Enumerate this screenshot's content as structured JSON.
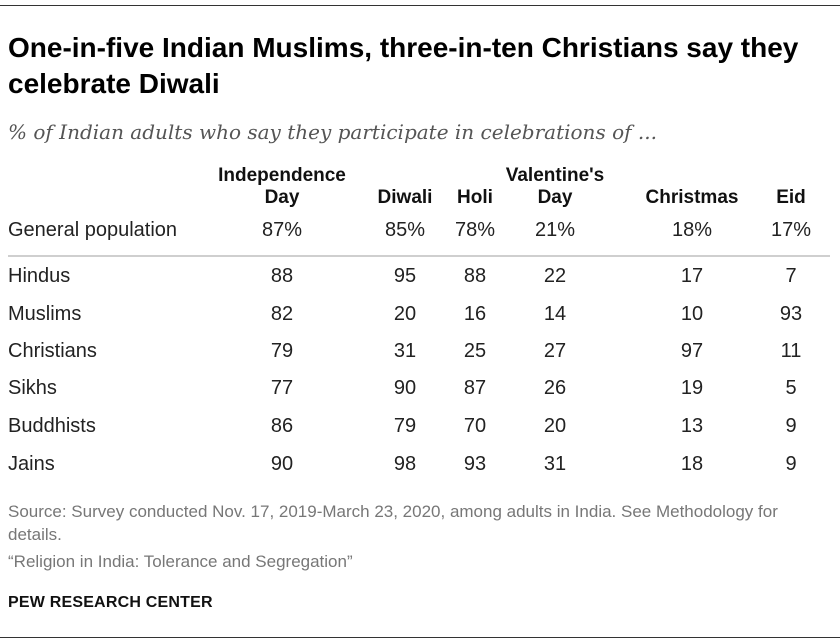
{
  "title": "One-in-five Indian Muslims, three-in-ten Christians say they celebrate Diwali",
  "subtitle": "% of Indian adults who say they participate in celebrations of ...",
  "source": "Source: Survey conducted Nov. 17, 2019-March 23, 2020, among adults in India. See Methodology for details.",
  "report": "“Religion in India: Tolerance and Segregation”",
  "organization": "PEW RESEARCH CENTER",
  "chart_data": {
    "type": "table",
    "columns": [
      {
        "line1": "Independence",
        "line2": "Day"
      },
      {
        "line1": "",
        "line2": "Diwali"
      },
      {
        "line1": "",
        "line2": "Holi"
      },
      {
        "line1": "Valentine's",
        "line2": "Day"
      },
      {
        "line1": "",
        "line2": "Christmas"
      },
      {
        "line1": "",
        "line2": "Eid"
      }
    ],
    "rows": [
      {
        "label": "General population",
        "values": [
          "87%",
          "85%",
          "78%",
          "21%",
          "18%",
          "17%"
        ]
      },
      {
        "label": "Hindus",
        "values": [
          "88",
          "95",
          "88",
          "22",
          "17",
          "7"
        ]
      },
      {
        "label": "Muslims",
        "values": [
          "82",
          "20",
          "16",
          "14",
          "10",
          "93"
        ]
      },
      {
        "label": "Christians",
        "values": [
          "79",
          "31",
          "25",
          "27",
          "97",
          "11"
        ]
      },
      {
        "label": "Sikhs",
        "values": [
          "77",
          "90",
          "87",
          "26",
          "19",
          "5"
        ]
      },
      {
        "label": "Buddhists",
        "values": [
          "86",
          "79",
          "70",
          "20",
          "13",
          "9"
        ]
      },
      {
        "label": "Jains",
        "values": [
          "90",
          "98",
          "93",
          "31",
          "18",
          "9"
        ]
      }
    ]
  }
}
